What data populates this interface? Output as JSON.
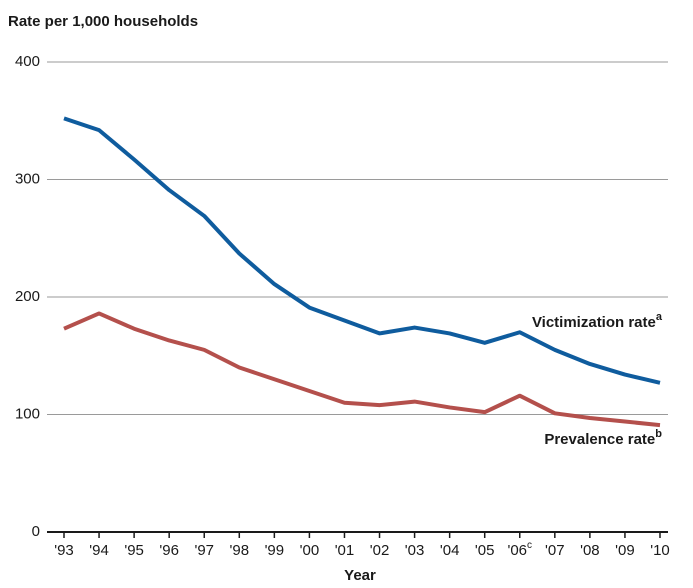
{
  "chart_data": {
    "type": "line",
    "y_label": "Rate per 1,000 households",
    "x_label": "Year",
    "categories": [
      "'93",
      "'94",
      "'95",
      "'96",
      "'97",
      "'98",
      "'99",
      "'00",
      "'01",
      "'02",
      "'03",
      "'04",
      "'05",
      "'06",
      "'07",
      "'08",
      "'09",
      "'10"
    ],
    "category_notes": [
      null,
      null,
      null,
      null,
      null,
      null,
      null,
      null,
      null,
      null,
      null,
      null,
      null,
      "c",
      null,
      null,
      null,
      null
    ],
    "series": [
      {
        "name": "Victimization rate",
        "note": "a",
        "color": "#0f5c9e",
        "values": [
          352,
          342,
          317,
          291,
          269,
          237,
          211,
          191,
          180,
          169,
          174,
          169,
          161,
          170,
          155,
          143,
          134,
          127
        ]
      },
      {
        "name": "Prevalence rate",
        "note": "b",
        "color": "#b4504c",
        "values": [
          173,
          186,
          173,
          163,
          155,
          140,
          130,
          120,
          110,
          108,
          111,
          106,
          102,
          116,
          101,
          97,
          94,
          91
        ]
      }
    ],
    "ylim": [
      0,
      400
    ],
    "yticks": [
      0,
      100,
      200,
      300,
      400
    ],
    "grid": true
  }
}
